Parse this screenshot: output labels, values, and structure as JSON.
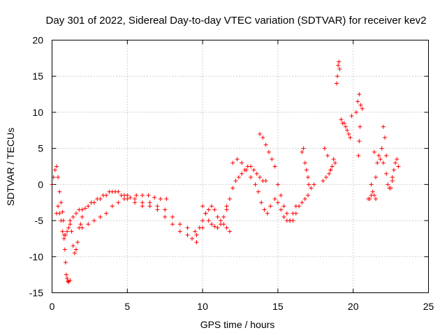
{
  "chart_data": {
    "type": "scatter",
    "title": "Day 301 of 2022, Sidereal Day-to-day VTEC variation (SDTVAR) for receiver kev2",
    "xlabel": "GPS time / hours",
    "ylabel": "SDTVAR / TECUs",
    "xlim": [
      0,
      25
    ],
    "ylim": [
      -15,
      20
    ],
    "xticks": [
      "0",
      "5",
      "10",
      "15",
      "20",
      "25"
    ],
    "yticks": [
      "20",
      "15",
      "10",
      "5",
      "0",
      "-5",
      "-10",
      "-15"
    ],
    "grid": true,
    "marker": "plus",
    "color": "#ff0000",
    "series": [
      {
        "name": "SDTVAR",
        "x": [
          0.0,
          0.1,
          0.2,
          0.3,
          0.4,
          0.5,
          0.6,
          0.7,
          0.75,
          0.8,
          0.85,
          0.9,
          0.95,
          1.0,
          1.05,
          1.1,
          1.2,
          0.3,
          0.4,
          0.5,
          0.6,
          0.7,
          0.8,
          0.9,
          1.0,
          1.1,
          1.2,
          1.3,
          1.4,
          1.5,
          1.6,
          1.7,
          1.8,
          1.9,
          2.0,
          1.2,
          1.4,
          1.6,
          1.8,
          2.0,
          2.2,
          2.4,
          2.6,
          2.8,
          3.0,
          3.2,
          3.4,
          3.6,
          3.8,
          4.0,
          4.2,
          4.4,
          4.6,
          4.8,
          5.0,
          2.0,
          2.4,
          2.8,
          3.2,
          3.6,
          4.0,
          4.4,
          4.8,
          5.2,
          5.6,
          6.0,
          6.4,
          6.8,
          7.2,
          7.6,
          5.0,
          5.5,
          6.0,
          6.5,
          7.0,
          7.5,
          8.0,
          8.5,
          9.0,
          9.5,
          10.0,
          5.5,
          6.0,
          6.5,
          7.0,
          7.5,
          8.0,
          8.5,
          9.0,
          9.3,
          9.6,
          9.6,
          9.8,
          10.0,
          10.2,
          10.4,
          10.6,
          10.8,
          11.0,
          11.2,
          11.4,
          11.6,
          11.8,
          10.0,
          10.2,
          10.4,
          10.6,
          10.8,
          11.0,
          11.2,
          11.4,
          11.6,
          11.6,
          11.8,
          12.0,
          12.2,
          12.4,
          12.6,
          12.8,
          13.0,
          13.2,
          13.4,
          13.6,
          13.8,
          14.0,
          14.2,
          12.0,
          12.3,
          12.6,
          12.9,
          13.2,
          13.5,
          13.7,
          13.9,
          14.1,
          14.3,
          14.5,
          13.8,
          14.0,
          14.2,
          14.4,
          14.6,
          14.8,
          15.0,
          15.2,
          15.4,
          15.6,
          15.8,
          16.0,
          16.2,
          16.4,
          16.6,
          16.8,
          17.0,
          17.2,
          17.4,
          14.8,
          15.0,
          15.2,
          15.4,
          15.6,
          15.8,
          16.0,
          16.2,
          16.6,
          16.7,
          16.8,
          16.9,
          17.0,
          17.05,
          18.0,
          18.2,
          18.4,
          18.5,
          18.6,
          18.7,
          18.8,
          18.1,
          18.3,
          18.5,
          18.9,
          18.95,
          19.0,
          19.05,
          19.1,
          19.2,
          19.3,
          19.4,
          19.5,
          19.6,
          19.7,
          19.8,
          19.9,
          20.2,
          20.3,
          20.4,
          20.5,
          20.6,
          20.45,
          20.4,
          20.35,
          21.0,
          21.1,
          21.2,
          21.3,
          21.4,
          21.5,
          21.2,
          21.4,
          21.5,
          21.6,
          21.7,
          21.8,
          21.9,
          22.0,
          22.1,
          22.2,
          22.0,
          22.2,
          22.3,
          22.4,
          22.5,
          22.6,
          22.6,
          22.7,
          22.8,
          22.9,
          23.0
        ],
        "y": [
          0.0,
          1.0,
          2.0,
          2.5,
          1.0,
          -1.0,
          -2.5,
          -3.8,
          -5.0,
          -7.0,
          -9.0,
          -10.8,
          -12.5,
          -13.0,
          -13.4,
          -13.5,
          -13.3,
          -4.0,
          -3.0,
          -4.0,
          -5.0,
          -6.5,
          -7.5,
          -7.0,
          -6.5,
          -6.0,
          -5.5,
          -6.5,
          -8.5,
          -9.5,
          -9.0,
          -8.0,
          -6.0,
          -5.5,
          -4.5,
          -5.0,
          -4.5,
          -4.0,
          -3.5,
          -3.5,
          -3.3,
          -3.0,
          -2.5,
          -2.5,
          -2.0,
          -2.0,
          -1.5,
          -1.5,
          -1.0,
          -1.0,
          -1.0,
          -1.0,
          -1.5,
          -1.5,
          -1.5,
          -6.0,
          -5.5,
          -5.0,
          -4.5,
          -4.0,
          -3.0,
          -2.5,
          -2.0,
          -1.8,
          -1.5,
          -1.5,
          -1.5,
          -1.8,
          -2.0,
          -2.0,
          -2.0,
          -2.0,
          -2.5,
          -2.5,
          -3.0,
          -3.5,
          -4.5,
          -5.5,
          -6.0,
          -6.5,
          -6.0,
          -2.5,
          -3.0,
          -3.0,
          -3.5,
          -4.5,
          -5.5,
          -6.5,
          -7.0,
          -7.5,
          -8.0,
          -7.0,
          -6.0,
          -5.0,
          -4.0,
          -3.5,
          -3.0,
          -3.5,
          -4.5,
          -5.0,
          -5.5,
          -6.0,
          -6.5,
          -3.0,
          -4.0,
          -5.0,
          -5.5,
          -5.8,
          -6.0,
          -5.5,
          -4.5,
          -3.5,
          -3.0,
          -2.0,
          -0.5,
          0.5,
          1.0,
          1.5,
          2.0,
          2.5,
          2.5,
          2.0,
          1.5,
          1.0,
          0.5,
          0.5,
          3.0,
          3.5,
          3.0,
          2.0,
          1.0,
          0.0,
          -1.0,
          -2.5,
          -3.5,
          -4.0,
          -3.0,
          7.0,
          6.5,
          5.5,
          4.5,
          3.5,
          2.5,
          0.0,
          -1.5,
          -3.0,
          -4.0,
          -5.0,
          -5.0,
          -4.0,
          -3.0,
          -2.5,
          -2.0,
          -1.5,
          -0.5,
          0.0,
          -2.0,
          -2.5,
          -3.5,
          -4.5,
          -5.0,
          -5.0,
          -4.0,
          -3.0,
          4.5,
          5.0,
          3.0,
          2.0,
          1.0,
          0.0,
          0.5,
          1.0,
          1.5,
          2.0,
          2.5,
          3.5,
          3.0,
          5.0,
          4.0,
          2.0,
          14.0,
          15.0,
          16.5,
          17.0,
          16.0,
          9.0,
          8.5,
          8.5,
          8.0,
          7.5,
          7.0,
          6.5,
          9.5,
          10.0,
          11.5,
          12.5,
          11.0,
          10.5,
          8.0,
          6.0,
          4.0,
          -2.0,
          -2.0,
          -1.5,
          -1.0,
          -1.5,
          -2.0,
          0.0,
          4.5,
          1.0,
          3.0,
          4.0,
          3.5,
          5.0,
          8.0,
          6.5,
          4.0,
          3.0,
          1.5,
          0.0,
          -0.5,
          -0.5,
          0.5,
          1.0,
          2.0,
          3.0,
          3.5,
          2.5
        ]
      }
    ]
  }
}
